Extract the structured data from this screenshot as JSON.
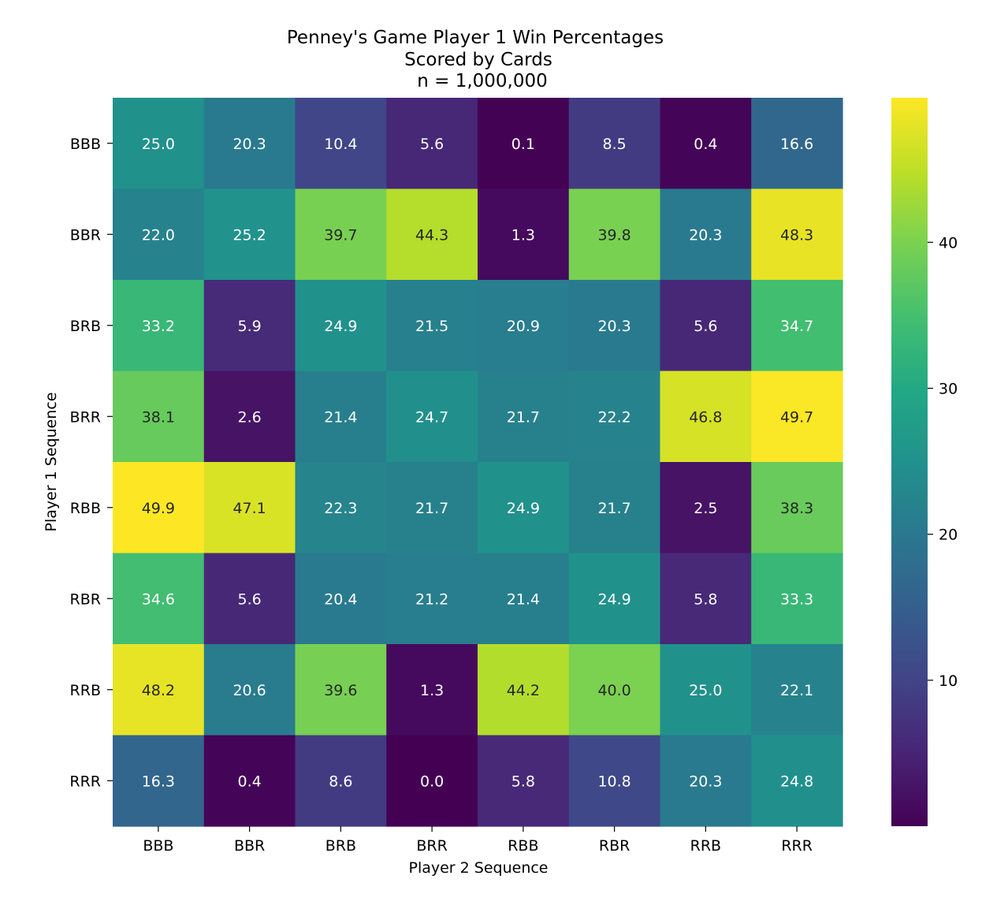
{
  "chart_data": {
    "type": "heatmap",
    "title_lines": [
      "Penney's Game Player 1 Win Percentages",
      "Scored by Cards",
      "n = 1,000,000"
    ],
    "xlabel": "Player 2 Sequence",
    "ylabel": "Player 1 Sequence",
    "x_categories": [
      "BBB",
      "BBR",
      "BRB",
      "BRR",
      "RBB",
      "RBR",
      "RRB",
      "RRR"
    ],
    "y_categories": [
      "BBB",
      "BBR",
      "BRB",
      "BRR",
      "RBB",
      "RBR",
      "RRB",
      "RRR"
    ],
    "values": [
      [
        25.0,
        20.3,
        10.4,
        5.6,
        0.1,
        8.5,
        0.4,
        16.6
      ],
      [
        22.0,
        25.2,
        39.7,
        44.3,
        1.3,
        39.8,
        20.3,
        48.3
      ],
      [
        33.2,
        5.9,
        24.9,
        21.5,
        20.9,
        20.3,
        5.6,
        34.7
      ],
      [
        38.1,
        2.6,
        21.4,
        24.7,
        21.7,
        22.2,
        46.8,
        49.7
      ],
      [
        49.9,
        47.1,
        22.3,
        21.7,
        24.9,
        21.7,
        2.5,
        38.3
      ],
      [
        34.6,
        5.6,
        20.4,
        21.2,
        21.4,
        24.9,
        5.8,
        33.3
      ],
      [
        48.2,
        20.6,
        39.6,
        1.3,
        44.2,
        40.0,
        25.0,
        22.1
      ],
      [
        16.3,
        0.4,
        8.6,
        0.0,
        5.8,
        10.8,
        20.3,
        24.8
      ]
    ],
    "colormap": "viridis",
    "vmin": 0.0,
    "vmax": 49.9,
    "colorbar_ticks": [
      10,
      20,
      30,
      40
    ],
    "annotation_dark_color": "#262626",
    "annotation_light_color": "#ffffff"
  }
}
